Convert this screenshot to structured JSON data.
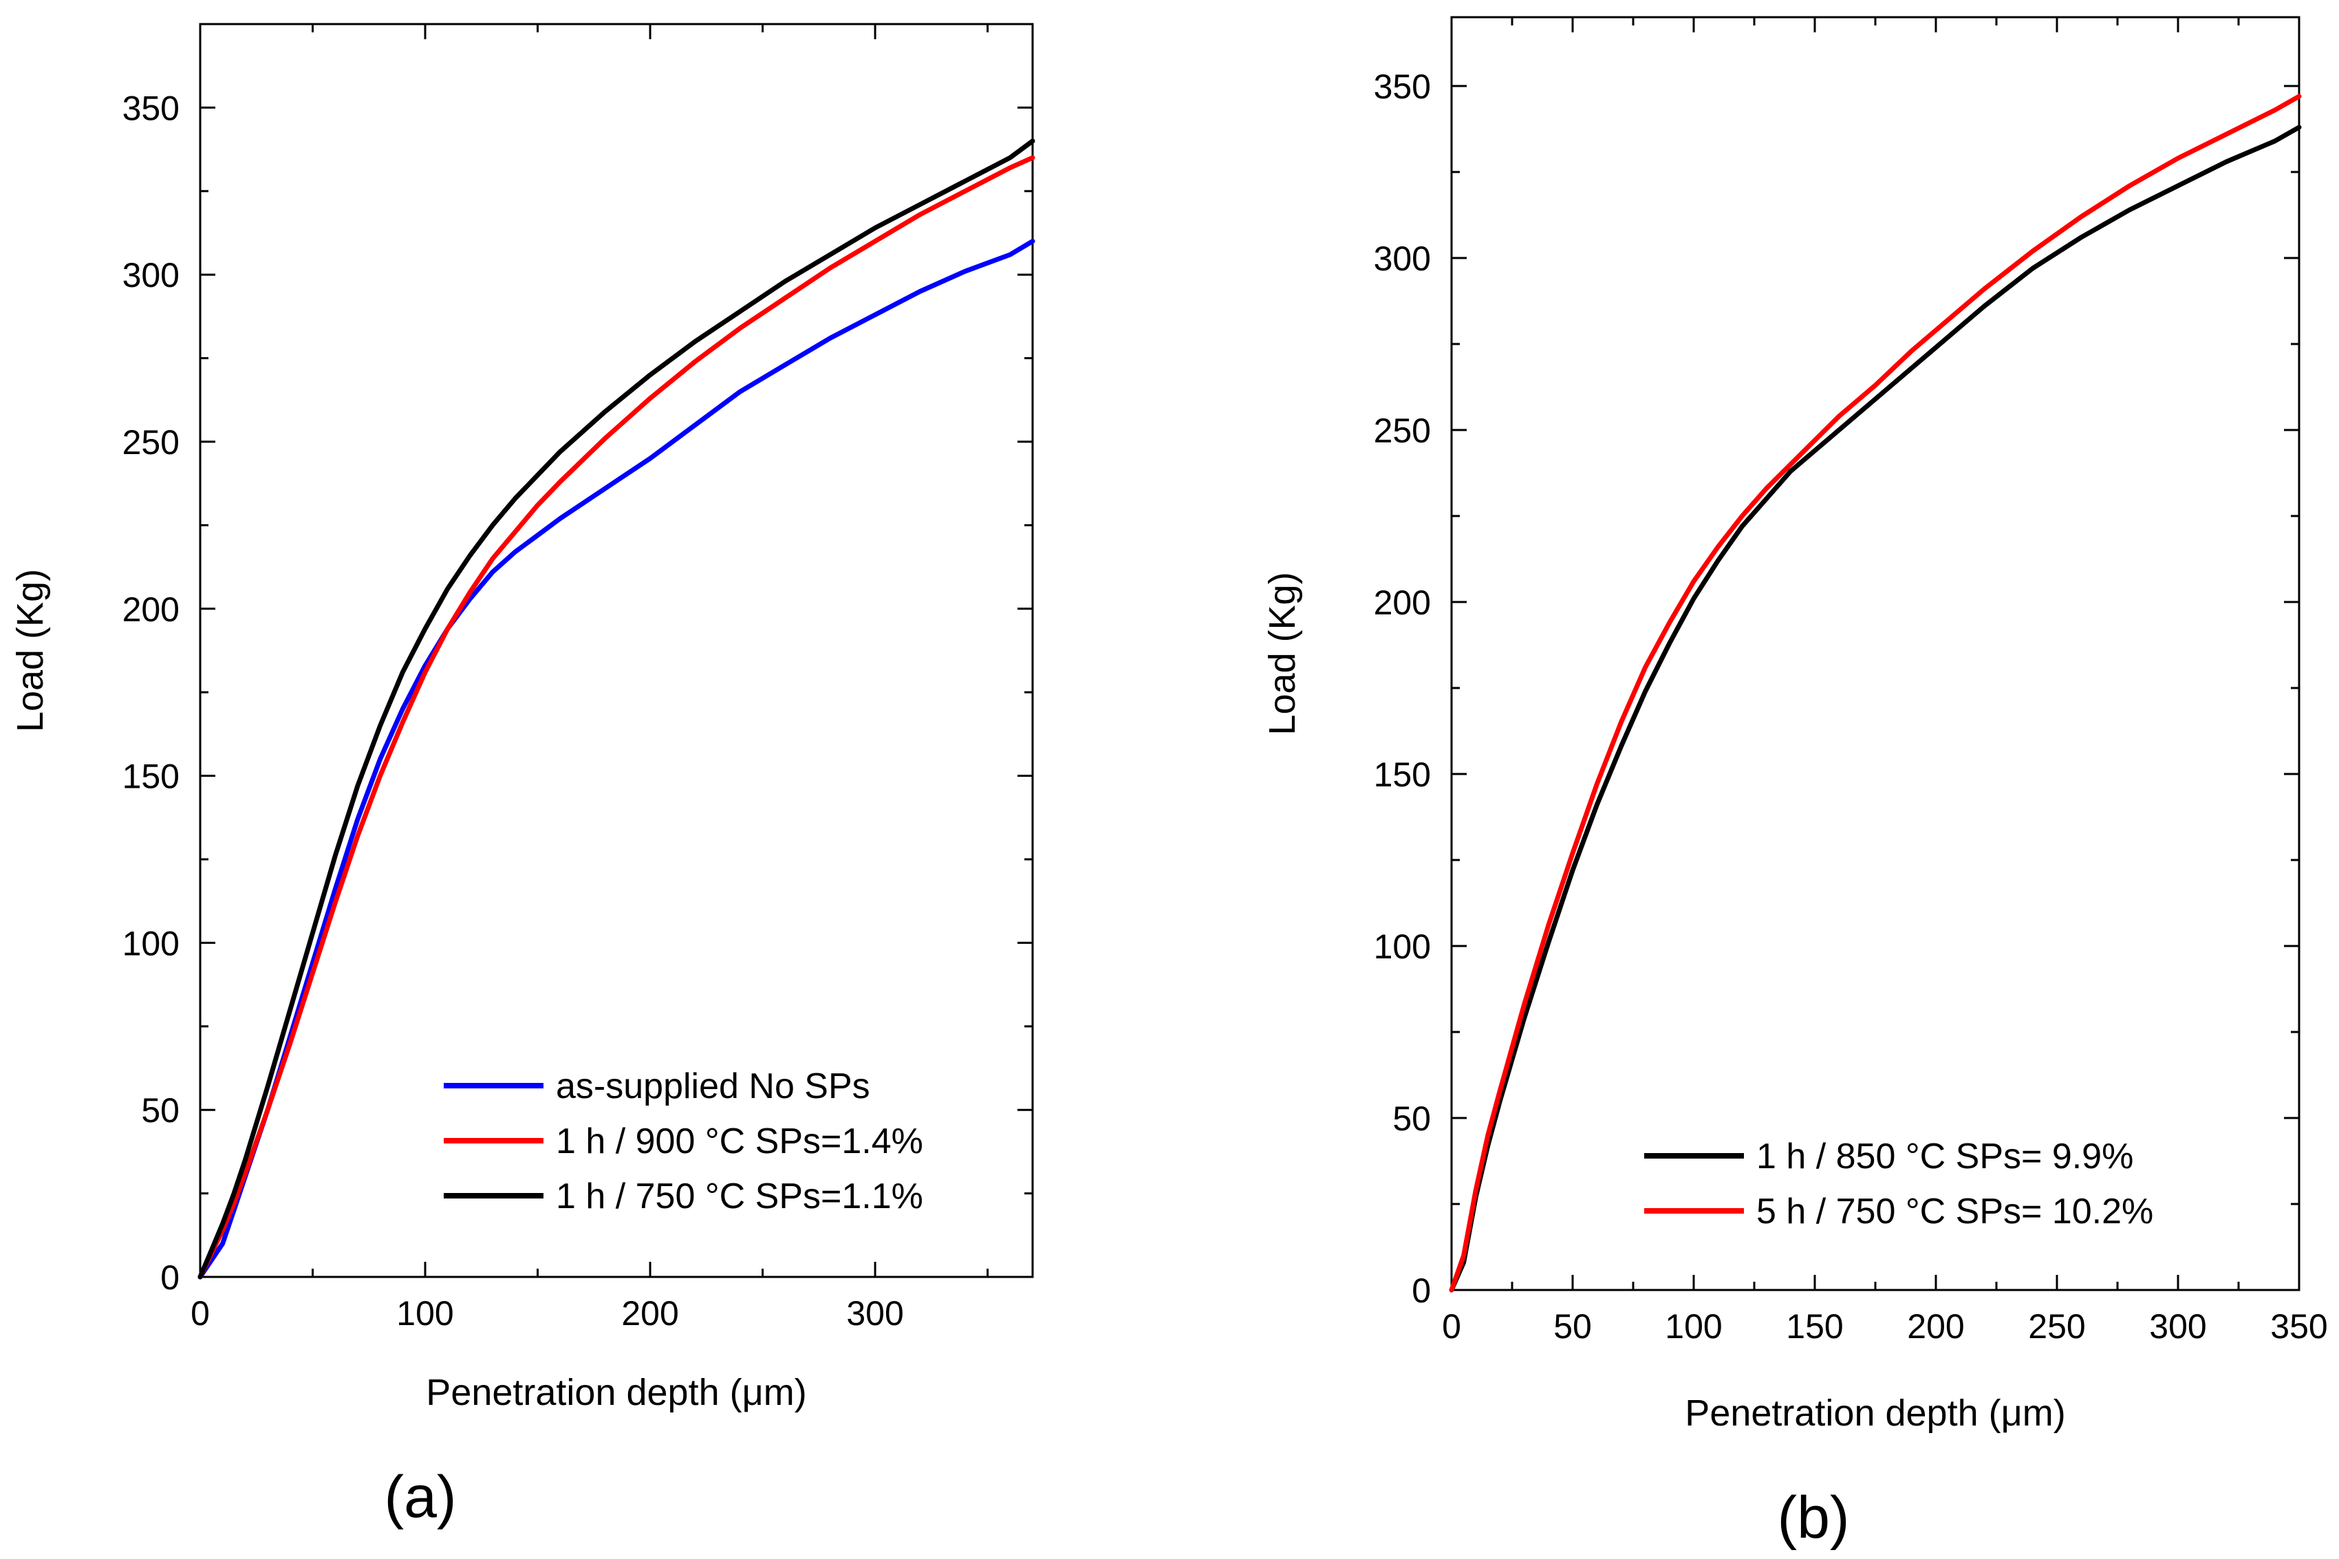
{
  "chart_data": [
    {
      "type": "line",
      "panel_label": "(a)",
      "xlabel": "Penetration depth (μm)",
      "ylabel": "Load (Kg)",
      "xlim": [
        0,
        370
      ],
      "ylim": [
        0,
        375
      ],
      "xticks": [
        0,
        100,
        200,
        300
      ],
      "xticks_minor": [
        50,
        150,
        250,
        350
      ],
      "yticks": [
        0,
        50,
        100,
        150,
        200,
        250,
        300,
        350
      ],
      "yticks_minor": [
        25,
        75,
        125,
        175,
        225,
        275,
        325
      ],
      "legend_position": "bottom-right",
      "series": [
        {
          "name": "as-supplied  No SPs",
          "color": "#0000ff",
          "x": [
            0,
            5,
            10,
            15,
            20,
            30,
            40,
            50,
            60,
            70,
            80,
            90,
            100,
            110,
            120,
            130,
            140,
            150,
            160,
            180,
            200,
            220,
            240,
            260,
            280,
            300,
            320,
            340,
            360,
            370
          ],
          "y": [
            0,
            5,
            10,
            20,
            30,
            50,
            72,
            94,
            116,
            137,
            155,
            170,
            183,
            194,
            203,
            211,
            217,
            222,
            227,
            236,
            245,
            255,
            265,
            273,
            281,
            288,
            295,
            301,
            306,
            310
          ]
        },
        {
          "name": "1 h / 900 °C  SPs=1.4%",
          "color": "#ff0000",
          "x": [
            0,
            5,
            10,
            15,
            20,
            30,
            40,
            50,
            60,
            70,
            80,
            90,
            100,
            110,
            120,
            130,
            140,
            150,
            160,
            180,
            200,
            220,
            240,
            260,
            280,
            300,
            320,
            340,
            360,
            370
          ],
          "y": [
            0,
            7,
            14,
            22,
            31,
            50,
            70,
            91,
            112,
            132,
            150,
            166,
            181,
            194,
            205,
            215,
            223,
            231,
            238,
            251,
            263,
            274,
            284,
            293,
            302,
            310,
            318,
            325,
            332,
            335
          ]
        },
        {
          "name": "1 h / 750 °C  SPs=1.1%",
          "color": "#000000",
          "x": [
            0,
            5,
            10,
            15,
            20,
            30,
            40,
            50,
            60,
            70,
            80,
            90,
            100,
            110,
            120,
            130,
            140,
            150,
            160,
            180,
            200,
            220,
            240,
            260,
            280,
            300,
            320,
            340,
            360,
            370
          ],
          "y": [
            0,
            8,
            16,
            25,
            35,
            57,
            80,
            103,
            126,
            147,
            165,
            181,
            194,
            206,
            216,
            225,
            233,
            240,
            247,
            259,
            270,
            280,
            289,
            298,
            306,
            314,
            321,
            328,
            335,
            340
          ]
        }
      ]
    },
    {
      "type": "line",
      "panel_label": "(b)",
      "xlabel": "Penetration depth (μm)",
      "ylabel": "Load (Kg)",
      "xlim": [
        0,
        350
      ],
      "ylim": [
        0,
        370
      ],
      "xticks": [
        0,
        50,
        100,
        150,
        200,
        250,
        300,
        350
      ],
      "xticks_minor": [
        25,
        75,
        125,
        175,
        225,
        275,
        325
      ],
      "yticks": [
        0,
        50,
        100,
        150,
        200,
        250,
        300,
        350
      ],
      "yticks_minor": [
        25,
        75,
        125,
        175,
        225,
        275,
        325
      ],
      "legend_position": "bottom-right",
      "series": [
        {
          "name": "1 h / 850 °C  SPs= 9.9%",
          "color": "#000000",
          "x": [
            0,
            5,
            10,
            15,
            20,
            30,
            40,
            50,
            60,
            70,
            80,
            90,
            100,
            110,
            120,
            130,
            140,
            150,
            160,
            175,
            190,
            200,
            220,
            240,
            260,
            280,
            300,
            320,
            340,
            350
          ],
          "y": [
            0,
            8,
            27,
            42,
            55,
            79,
            101,
            122,
            141,
            158,
            174,
            188,
            201,
            212,
            222,
            230,
            238,
            244,
            250,
            259,
            268,
            274,
            286,
            297,
            306,
            314,
            321,
            328,
            334,
            338
          ]
        },
        {
          "name": "5 h / 750 °C  SPs= 10.2%",
          "color": "#ff0000",
          "x": [
            0,
            5,
            10,
            15,
            20,
            30,
            40,
            50,
            60,
            70,
            80,
            90,
            100,
            110,
            120,
            130,
            140,
            150,
            160,
            175,
            190,
            200,
            220,
            240,
            260,
            280,
            300,
            320,
            340,
            350
          ],
          "y": [
            0,
            10,
            29,
            45,
            58,
            83,
            106,
            127,
            147,
            165,
            181,
            194,
            206,
            216,
            225,
            233,
            240,
            247,
            254,
            263,
            273,
            279,
            291,
            302,
            312,
            321,
            329,
            336,
            343,
            347
          ]
        }
      ]
    }
  ]
}
